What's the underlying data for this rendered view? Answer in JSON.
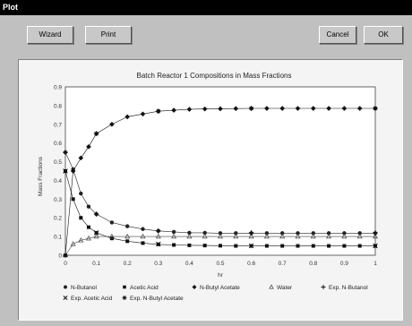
{
  "window": {
    "title": "Plot"
  },
  "toolbar": {
    "wizard_label": "Wizard",
    "print_label": "Print",
    "cancel_label": "Cancel",
    "ok_label": "OK"
  },
  "chart_data": {
    "type": "scatter",
    "title": "Batch Reactor 1 Compositions in Mass Fractions",
    "xlabel": "hr",
    "ylabel": "Mass Fractions",
    "xlim": [
      0,
      1
    ],
    "ylim": [
      0,
      0.9
    ],
    "xticks": [
      "0",
      "0.1",
      "0.2",
      "0.3",
      "0.4",
      "0.5",
      "0.6",
      "0.7",
      "0.8",
      "0.9",
      "1"
    ],
    "yticks": [
      "0",
      "0.1",
      "0.2",
      "0.3",
      "0.4",
      "0.5",
      "0.6",
      "0.7",
      "0.8",
      "0.9"
    ],
    "grid": true,
    "legend_position": "bottom",
    "series": [
      {
        "name": "N-Butanol",
        "marker": "circle",
        "color": "#222222",
        "points": [
          [
            0,
            0.55
          ],
          [
            0.025,
            0.46
          ],
          [
            0.05,
            0.33
          ],
          [
            0.075,
            0.26
          ],
          [
            0.1,
            0.22
          ],
          [
            0.15,
            0.175
          ],
          [
            0.2,
            0.155
          ],
          [
            0.25,
            0.14
          ],
          [
            0.3,
            0.13
          ],
          [
            0.35,
            0.125
          ],
          [
            0.4,
            0.12
          ],
          [
            0.45,
            0.12
          ],
          [
            0.5,
            0.118
          ],
          [
            0.55,
            0.118
          ],
          [
            0.6,
            0.118
          ],
          [
            0.65,
            0.118
          ],
          [
            0.7,
            0.118
          ],
          [
            0.75,
            0.118
          ],
          [
            0.8,
            0.118
          ],
          [
            0.85,
            0.118
          ],
          [
            0.9,
            0.118
          ],
          [
            0.95,
            0.118
          ],
          [
            1,
            0.118
          ]
        ]
      },
      {
        "name": "Acetic Acid",
        "marker": "square",
        "color": "#111111",
        "points": [
          [
            0,
            0.45
          ],
          [
            0.025,
            0.3
          ],
          [
            0.05,
            0.2
          ],
          [
            0.075,
            0.15
          ],
          [
            0.1,
            0.12
          ],
          [
            0.15,
            0.09
          ],
          [
            0.2,
            0.075
          ],
          [
            0.25,
            0.065
          ],
          [
            0.3,
            0.058
          ],
          [
            0.35,
            0.055
          ],
          [
            0.4,
            0.053
          ],
          [
            0.45,
            0.052
          ],
          [
            0.5,
            0.051
          ],
          [
            0.55,
            0.05
          ],
          [
            0.6,
            0.05
          ],
          [
            0.65,
            0.05
          ],
          [
            0.7,
            0.05
          ],
          [
            0.75,
            0.05
          ],
          [
            0.8,
            0.05
          ],
          [
            0.85,
            0.05
          ],
          [
            0.9,
            0.05
          ],
          [
            0.95,
            0.05
          ],
          [
            1,
            0.05
          ]
        ]
      },
      {
        "name": "N-Butyl Acetate",
        "marker": "diamond",
        "color": "#111111",
        "points": [
          [
            0,
            0
          ],
          [
            0.025,
            0.45
          ],
          [
            0.05,
            0.52
          ],
          [
            0.075,
            0.58
          ],
          [
            0.1,
            0.65
          ],
          [
            0.15,
            0.7
          ],
          [
            0.2,
            0.74
          ],
          [
            0.25,
            0.755
          ],
          [
            0.3,
            0.77
          ],
          [
            0.35,
            0.775
          ],
          [
            0.4,
            0.78
          ],
          [
            0.45,
            0.782
          ],
          [
            0.5,
            0.783
          ],
          [
            0.55,
            0.784
          ],
          [
            0.6,
            0.785
          ],
          [
            0.65,
            0.785
          ],
          [
            0.7,
            0.785
          ],
          [
            0.75,
            0.785
          ],
          [
            0.8,
            0.785
          ],
          [
            0.85,
            0.785
          ],
          [
            0.9,
            0.785
          ],
          [
            0.95,
            0.785
          ],
          [
            1,
            0.785
          ]
        ]
      },
      {
        "name": "Water",
        "marker": "triangle",
        "color": "#444444",
        "points": [
          [
            0,
            0
          ],
          [
            0.025,
            0.06
          ],
          [
            0.05,
            0.08
          ],
          [
            0.075,
            0.09
          ],
          [
            0.1,
            0.1
          ],
          [
            0.15,
            0.1
          ],
          [
            0.2,
            0.1
          ],
          [
            0.25,
            0.1
          ],
          [
            0.3,
            0.1
          ],
          [
            0.35,
            0.1
          ],
          [
            0.4,
            0.1
          ],
          [
            0.45,
            0.1
          ],
          [
            0.5,
            0.1
          ],
          [
            0.55,
            0.1
          ],
          [
            0.6,
            0.1
          ],
          [
            0.65,
            0.1
          ],
          [
            0.7,
            0.1
          ],
          [
            0.75,
            0.1
          ],
          [
            0.8,
            0.1
          ],
          [
            0.85,
            0.1
          ],
          [
            0.9,
            0.1
          ],
          [
            0.95,
            0.1
          ],
          [
            1,
            0.1
          ]
        ]
      },
      {
        "name": "Exp. N-Butanol",
        "marker": "plus",
        "color": "#111111",
        "points": [
          [
            0,
            0.55
          ],
          [
            0.1,
            0.22
          ],
          [
            0.3,
            0.13
          ],
          [
            0.6,
            0.12
          ],
          [
            1,
            0.12
          ]
        ]
      },
      {
        "name": "Exp. Acetic Acid",
        "marker": "x",
        "color": "#111111",
        "points": [
          [
            0,
            0.45
          ],
          [
            0.1,
            0.12
          ],
          [
            0.3,
            0.06
          ],
          [
            0.6,
            0.05
          ],
          [
            1,
            0.05
          ]
        ]
      },
      {
        "name": "Exp. N-Butyl Acetate",
        "marker": "star",
        "color": "#111111",
        "points": [
          [
            0,
            0
          ],
          [
            0.1,
            0.65
          ],
          [
            0.3,
            0.77
          ],
          [
            0.6,
            0.785
          ],
          [
            1,
            0.785
          ]
        ]
      }
    ],
    "legend_rows": [
      [
        "N-Butanol",
        "Acetic Acid",
        "N-Butyl Acetate",
        "Water",
        "Exp. N-Butanol"
      ],
      [
        "Exp. Acetic Acid",
        "Exp. N-Butyl Acetate"
      ]
    ]
  }
}
